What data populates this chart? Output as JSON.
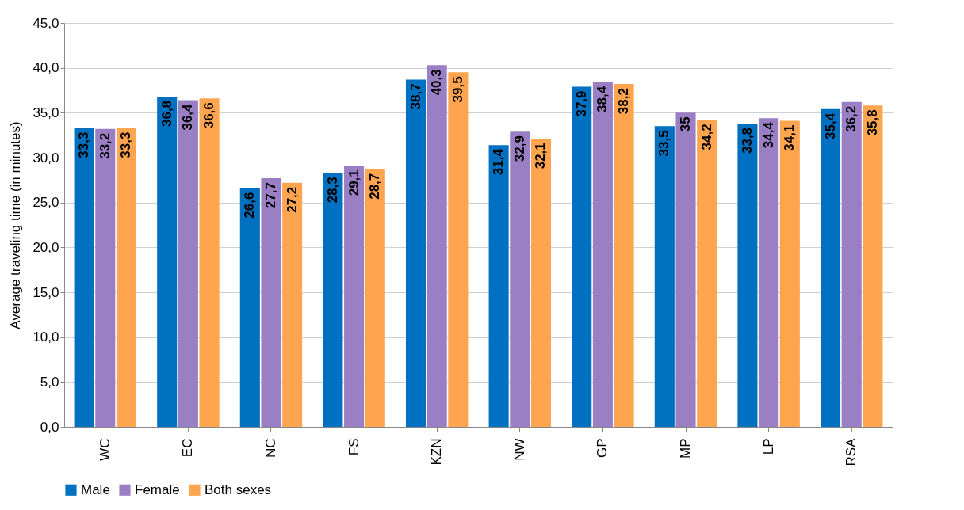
{
  "chart_data": {
    "type": "bar",
    "ylabel": "Average traveling time (in minutes)",
    "categories": [
      "WC",
      "EC",
      "NC",
      "FS",
      "KZN",
      "NW",
      "GP",
      "MP",
      "LP",
      "RSA"
    ],
    "series": [
      {
        "name": "Male",
        "color": "#0070c0",
        "values": [
          33.3,
          36.8,
          26.6,
          28.3,
          38.7,
          31.4,
          37.9,
          33.5,
          33.8,
          35.4
        ],
        "value_labels": [
          "33,3",
          "36,8",
          "26,6",
          "28,3",
          "38,7",
          "31,4",
          "37,9",
          "33,5",
          "33,8",
          "35,4"
        ]
      },
      {
        "name": "Female",
        "color": "#9a7fc5",
        "values": [
          33.2,
          36.4,
          27.7,
          29.1,
          40.3,
          32.9,
          38.4,
          35,
          34.4,
          36.2
        ],
        "value_labels": [
          "33,2",
          "36,4",
          "27,7",
          "29,1",
          "40,3",
          "32,9",
          "38,4",
          "35",
          "34,4",
          "36,2"
        ]
      },
      {
        "name": "Both sexes",
        "color": "#ffa44f",
        "values": [
          33.3,
          36.6,
          27.2,
          28.7,
          39.5,
          32.1,
          38.2,
          34.2,
          34.1,
          35.8
        ],
        "value_labels": [
          "33,3",
          "36,6",
          "27,2",
          "28,7",
          "39,5",
          "32,1",
          "38,2",
          "34,2",
          "34,1",
          "35,8"
        ]
      }
    ],
    "ylim": [
      0,
      45
    ],
    "yticks": [
      {
        "value": 0,
        "label": "0,0"
      },
      {
        "value": 5,
        "label": "5,0"
      },
      {
        "value": 10,
        "label": "10,0"
      },
      {
        "value": 15,
        "label": "15,0"
      },
      {
        "value": 20,
        "label": "20,0"
      },
      {
        "value": 25,
        "label": "25,0"
      },
      {
        "value": 30,
        "label": "30,0"
      },
      {
        "value": 35,
        "label": "35,0"
      },
      {
        "value": 40,
        "label": "40,0"
      },
      {
        "value": 45,
        "label": "45,0"
      }
    ],
    "grid": "y",
    "legend": "bottom"
  }
}
